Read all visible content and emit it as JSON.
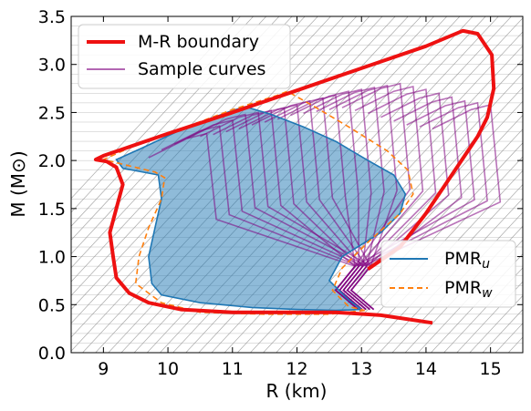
{
  "chart_data": {
    "type": "line",
    "xlabel": "R (km)",
    "ylabel": "M (M⊙)",
    "xlim": [
      8.5,
      15.5
    ],
    "ylim": [
      0.0,
      3.5
    ],
    "xticks": [
      "9",
      "10",
      "11",
      "12",
      "13",
      "14",
      "15"
    ],
    "yticks": [
      "0.0",
      "0.5",
      "1.0",
      "1.5",
      "2.0",
      "2.5",
      "3.0",
      "3.5"
    ],
    "grid": "off",
    "legends": [
      {
        "placement": "upper-left",
        "entries": [
          "M-R boundary",
          "Sample curves"
        ]
      },
      {
        "placement": "lower-right",
        "entries": [
          "PMR_u",
          "PMR_w"
        ]
      }
    ],
    "colors": {
      "boundary": "#ee1111",
      "samples": "#800080",
      "pmr_u_line": "#1f77b4",
      "pmr_u_fill": "#1f77b4",
      "pmr_w": "#ff7f0e",
      "background_lines": "#8c8c8c"
    },
    "series": [
      {
        "name": "M-R boundary",
        "x": [
          14.1,
          13.3,
          12.6,
          12.0,
          11.0,
          10.2,
          9.7,
          9.4,
          9.2,
          9.15,
          9.1,
          9.2,
          9.3,
          9.2,
          9.05,
          8.88,
          9.0,
          10.0,
          11.0,
          12.0,
          13.0,
          14.0,
          14.57,
          14.8,
          15.02,
          15.05,
          14.95,
          14.8,
          14.45,
          14.0,
          13.6,
          13.1
        ],
        "y": [
          0.31,
          0.39,
          0.42,
          0.42,
          0.42,
          0.45,
          0.52,
          0.62,
          0.78,
          1.0,
          1.25,
          1.5,
          1.75,
          1.93,
          1.99,
          2.01,
          2.05,
          2.28,
          2.5,
          2.73,
          2.96,
          3.19,
          3.35,
          3.32,
          3.1,
          2.75,
          2.45,
          2.25,
          1.9,
          1.45,
          1.1,
          0.87
        ]
      },
      {
        "name": "PMR_u",
        "x": [
          13.0,
          12.6,
          12.0,
          11.3,
          10.5,
          9.9,
          9.75,
          9.7,
          9.8,
          9.9,
          9.85,
          9.3,
          9.2,
          9.6,
          10.3,
          11.0,
          11.2,
          11.6,
          12.1,
          12.6,
          13.1,
          13.5,
          13.68,
          13.6,
          13.3,
          12.7,
          12.5,
          12.8
        ],
        "y": [
          0.45,
          0.44,
          0.45,
          0.47,
          0.52,
          0.6,
          0.72,
          1.0,
          1.3,
          1.6,
          1.85,
          1.92,
          2.01,
          2.13,
          2.35,
          2.52,
          2.56,
          2.48,
          2.35,
          2.2,
          2.0,
          1.85,
          1.65,
          1.45,
          1.25,
          1.0,
          0.75,
          0.55
        ]
      },
      {
        "name": "PMR_w",
        "x": [
          13.05,
          12.5,
          11.5,
          10.5,
          9.9,
          9.5,
          9.55,
          9.7,
          9.9,
          9.95,
          9.8,
          9.0,
          9.4,
          10.2,
          11.0,
          11.7,
          11.85,
          12.3,
          12.8,
          13.4,
          13.72,
          13.8,
          13.6,
          13.1,
          12.7,
          12.55,
          12.8
        ],
        "y": [
          0.44,
          0.4,
          0.4,
          0.42,
          0.52,
          0.72,
          1.0,
          1.3,
          1.6,
          1.82,
          1.88,
          2.01,
          2.13,
          2.33,
          2.53,
          2.68,
          2.72,
          2.55,
          2.35,
          2.1,
          1.9,
          1.65,
          1.45,
          1.15,
          0.88,
          0.65,
          0.48
        ]
      }
    ],
    "sample_curves": {
      "name": "Sample curves",
      "peaks": [
        [
          10.6,
          2.28
        ],
        [
          10.8,
          2.36
        ],
        [
          11.0,
          2.42
        ],
        [
          11.2,
          2.48
        ],
        [
          11.4,
          2.5
        ],
        [
          11.6,
          2.52
        ],
        [
          11.8,
          2.55
        ],
        [
          12.0,
          2.58
        ],
        [
          12.2,
          2.62
        ],
        [
          12.4,
          2.65
        ],
        [
          12.6,
          2.68
        ],
        [
          12.8,
          2.72
        ],
        [
          13.0,
          2.74
        ],
        [
          13.2,
          2.76
        ],
        [
          13.4,
          2.78
        ],
        [
          13.6,
          2.8
        ],
        [
          13.8,
          2.77
        ],
        [
          14.0,
          2.74
        ],
        [
          14.2,
          2.7
        ],
        [
          14.4,
          2.66
        ],
        [
          14.6,
          2.62
        ],
        [
          14.8,
          2.6
        ],
        [
          15.0,
          2.58
        ]
      ],
      "knee_mass": 1.4
    },
    "background_lines": {
      "count": 46,
      "x_span_km": 0.45,
      "description": "thin gray diagonal lines across the plot"
    }
  }
}
